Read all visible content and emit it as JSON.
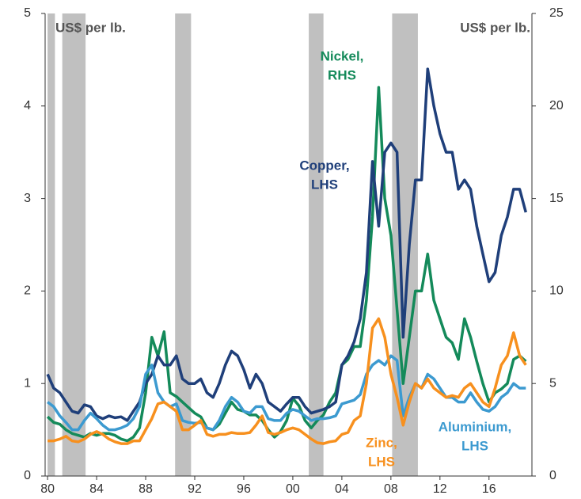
{
  "chart_data": {
    "type": "line",
    "x": [
      1980,
      1980.5,
      1981,
      1981.5,
      1982,
      1982.5,
      1983,
      1983.5,
      1984,
      1984.5,
      1985,
      1985.5,
      1986,
      1986.5,
      1987,
      1987.5,
      1988,
      1988.5,
      1989,
      1989.5,
      1990,
      1990.5,
      1991,
      1991.5,
      1992,
      1992.5,
      1993,
      1993.5,
      1994,
      1994.5,
      1995,
      1995.5,
      1996,
      1996.5,
      1997,
      1997.5,
      1998,
      1998.5,
      1999,
      1999.5,
      2000,
      2000.5,
      2001,
      2001.5,
      2002,
      2002.5,
      2003,
      2003.5,
      2004,
      2004.5,
      2005,
      2005.5,
      2006,
      2006.5,
      2007,
      2007.5,
      2008,
      2008.5,
      2009,
      2009.5,
      2010,
      2010.5,
      2011,
      2011.5,
      2012,
      2012.5,
      2013,
      2013.5,
      2014,
      2014.5,
      2015,
      2015.5,
      2016,
      2016.5,
      2017,
      2017.5,
      2018,
      2018.5,
      2019
    ],
    "series": [
      {
        "name": "Copper",
        "color": "#1f3f7a",
        "values": [
          1.1,
          0.95,
          0.9,
          0.8,
          0.7,
          0.68,
          0.77,
          0.75,
          0.65,
          0.62,
          0.65,
          0.63,
          0.64,
          0.6,
          0.7,
          0.8,
          1.0,
          1.1,
          1.3,
          1.2,
          1.2,
          1.3,
          1.05,
          1.0,
          1.0,
          1.05,
          0.9,
          0.85,
          1.0,
          1.2,
          1.35,
          1.3,
          1.15,
          0.95,
          1.1,
          1.0,
          0.8,
          0.75,
          0.7,
          0.78,
          0.85,
          0.85,
          0.75,
          0.68,
          0.7,
          0.72,
          0.75,
          0.8,
          1.2,
          1.3,
          1.45,
          1.7,
          2.2,
          3.4,
          2.7,
          3.5,
          3.6,
          3.5,
          1.5,
          2.5,
          3.2,
          3.2,
          4.4,
          4.0,
          3.7,
          3.5,
          3.5,
          3.1,
          3.2,
          3.1,
          2.7,
          2.4,
          2.1,
          2.2,
          2.6,
          2.8,
          3.1,
          3.1,
          2.85
        ]
      },
      {
        "name": "Nickel",
        "color": "#148a5a",
        "axis": "y2",
        "values": [
          3.2,
          2.9,
          2.8,
          2.5,
          2.3,
          2.2,
          2.1,
          2.3,
          2.2,
          2.3,
          2.3,
          2.2,
          2.0,
          1.9,
          2.1,
          2.6,
          4.5,
          7.5,
          6.5,
          7.8,
          4.5,
          4.3,
          4.0,
          3.7,
          3.4,
          3.2,
          2.6,
          2.5,
          2.8,
          3.4,
          4.0,
          3.6,
          3.5,
          3.3,
          3.3,
          3.0,
          2.5,
          2.1,
          2.4,
          3.0,
          4.2,
          3.8,
          3.0,
          2.6,
          3.0,
          3.3,
          4.0,
          4.5,
          6.0,
          6.3,
          7.0,
          7.0,
          9.5,
          14,
          21,
          15,
          13,
          9,
          5,
          7.5,
          10,
          10,
          12,
          9.5,
          8.5,
          7.5,
          7.2,
          6.3,
          8.5,
          7.5,
          6.2,
          5.0,
          4.0,
          4.5,
          4.7,
          5.0,
          6.3,
          6.5,
          6.2
        ]
      },
      {
        "name": "Zinc",
        "color": "#f7901e",
        "values": [
          0.38,
          0.38,
          0.4,
          0.43,
          0.38,
          0.37,
          0.4,
          0.45,
          0.48,
          0.45,
          0.4,
          0.37,
          0.35,
          0.35,
          0.38,
          0.38,
          0.5,
          0.62,
          0.78,
          0.8,
          0.75,
          0.7,
          0.5,
          0.5,
          0.55,
          0.6,
          0.45,
          0.43,
          0.45,
          0.45,
          0.47,
          0.46,
          0.46,
          0.47,
          0.55,
          0.65,
          0.47,
          0.45,
          0.47,
          0.5,
          0.52,
          0.5,
          0.45,
          0.4,
          0.36,
          0.35,
          0.37,
          0.38,
          0.45,
          0.47,
          0.6,
          0.65,
          1.0,
          1.6,
          1.7,
          1.5,
          1.1,
          0.85,
          0.55,
          0.8,
          1.0,
          0.95,
          1.05,
          0.95,
          0.9,
          0.85,
          0.87,
          0.85,
          0.95,
          1.0,
          0.9,
          0.8,
          0.75,
          0.95,
          1.2,
          1.3,
          1.55,
          1.3,
          1.2
        ]
      },
      {
        "name": "Aluminium",
        "color": "#3c9ad0",
        "values": [
          0.8,
          0.75,
          0.65,
          0.58,
          0.5,
          0.5,
          0.6,
          0.68,
          0.62,
          0.55,
          0.5,
          0.5,
          0.52,
          0.55,
          0.62,
          0.75,
          1.1,
          1.2,
          0.9,
          0.8,
          0.75,
          0.78,
          0.6,
          0.58,
          0.57,
          0.58,
          0.52,
          0.5,
          0.6,
          0.75,
          0.85,
          0.8,
          0.7,
          0.68,
          0.75,
          0.75,
          0.62,
          0.6,
          0.6,
          0.68,
          0.72,
          0.7,
          0.65,
          0.6,
          0.62,
          0.62,
          0.63,
          0.65,
          0.78,
          0.8,
          0.82,
          0.88,
          1.1,
          1.2,
          1.25,
          1.2,
          1.3,
          1.25,
          0.65,
          0.85,
          1.0,
          0.95,
          1.1,
          1.05,
          0.95,
          0.85,
          0.85,
          0.8,
          0.8,
          0.9,
          0.8,
          0.72,
          0.7,
          0.75,
          0.85,
          0.9,
          1.0,
          0.95,
          0.95
        ]
      }
    ],
    "xlim": [
      1979.8,
      2019.5
    ],
    "xticks": [
      {
        "value": 1980,
        "label": "80"
      },
      {
        "value": 1984,
        "label": "84"
      },
      {
        "value": 1988,
        "label": "88"
      },
      {
        "value": 1992,
        "label": "92"
      },
      {
        "value": 1996,
        "label": "96"
      },
      {
        "value": 2000,
        "label": "00"
      },
      {
        "value": 2004,
        "label": "04"
      },
      {
        "value": 2008,
        "label": "08"
      },
      {
        "value": 2012,
        "label": "12"
      },
      {
        "value": 2016,
        "label": "16"
      }
    ],
    "ylim": [
      0,
      5
    ],
    "yticks": [
      0,
      1,
      2,
      3,
      4,
      5
    ],
    "y2lim": [
      0,
      25
    ],
    "y2ticks": [
      0,
      5,
      10,
      15,
      20,
      25
    ],
    "shading": [
      [
        1980.0,
        1980.6
      ],
      [
        1981.2,
        1983.1
      ],
      [
        1990.4,
        1991.7
      ],
      [
        2001.3,
        2002.5
      ],
      [
        2008.1,
        2010.2
      ]
    ],
    "shading_color": "#c0c0c0",
    "ylabel": "US$ per lb.",
    "y2label": "US$ per lb.",
    "series_labels": [
      {
        "series": 1,
        "lines": [
          "Nickel,",
          "RHS"
        ]
      },
      {
        "series": 0,
        "lines": [
          "Copper,",
          "LHS"
        ]
      },
      {
        "series": 2,
        "lines": [
          "Zinc,",
          "LHS"
        ]
      },
      {
        "series": 3,
        "lines": [
          "Aluminium,",
          "LHS"
        ]
      }
    ]
  }
}
